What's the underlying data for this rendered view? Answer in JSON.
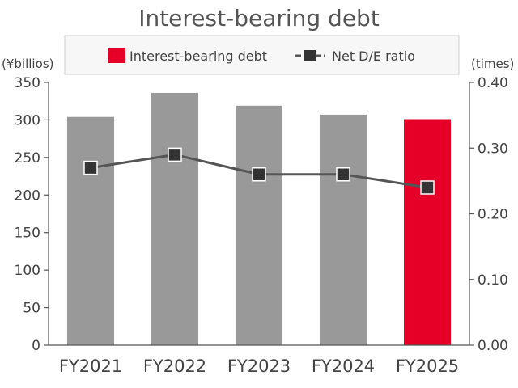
{
  "chart_data": {
    "type": "bar",
    "title": "Interest-bearing debt",
    "categories": [
      "FY2021",
      "FY2022",
      "FY2023",
      "FY2024",
      "FY2025"
    ],
    "series": [
      {
        "name": "Interest-bearing debt",
        "chart": "bar",
        "axis": "left",
        "values": [
          304,
          336,
          319,
          307,
          301
        ],
        "colors": [
          "#999999",
          "#999999",
          "#999999",
          "#999999",
          "#e60028"
        ]
      },
      {
        "name": "Net D/E ratio",
        "chart": "line",
        "axis": "right",
        "values": [
          0.27,
          0.29,
          0.26,
          0.26,
          0.24
        ],
        "color": "#555555",
        "marker_color": "#333333"
      }
    ],
    "y_left": {
      "label": "(¥billios)",
      "min": 0,
      "max": 350,
      "ticks": [
        "0",
        "50",
        "100",
        "150",
        "200",
        "250",
        "300",
        "350"
      ]
    },
    "y_right": {
      "label": "(times)",
      "min": 0,
      "max": 0.4,
      "ticks": [
        "0.00",
        "0.10",
        "0.20",
        "0.30",
        "0.40"
      ]
    },
    "legend_position": "top",
    "grid": false
  }
}
